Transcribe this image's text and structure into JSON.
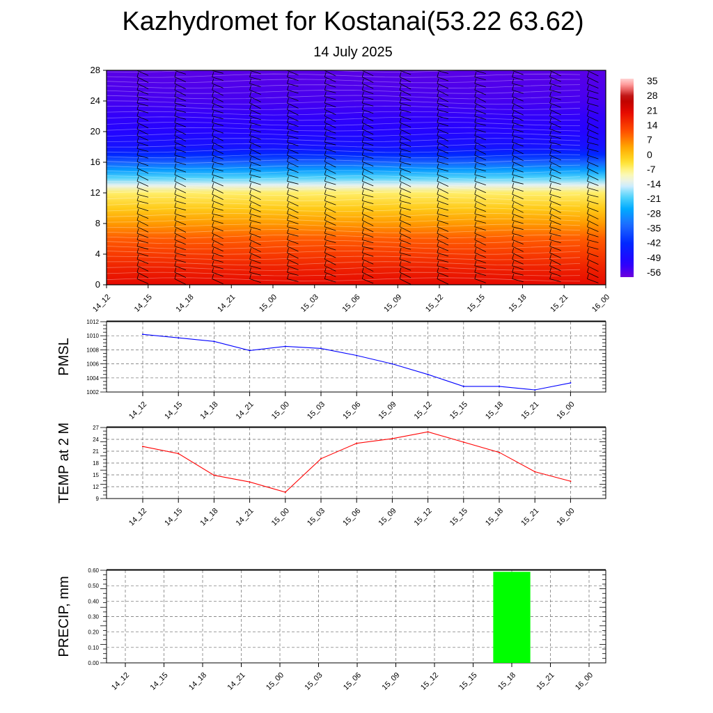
{
  "title": "Kazhydromet for Kostanai(53.22 63.62)",
  "subtitle": "14 July 2025",
  "time_labels": [
    "14_12",
    "14_15",
    "14_18",
    "14_21",
    "15_00",
    "15_03",
    "15_06",
    "15_09",
    "15_12",
    "15_15",
    "15_18",
    "15_21",
    "16_00"
  ],
  "colors": {
    "pmsl_line": "#0000ff",
    "temp_line": "#ff0000",
    "precip_bar": "#00ff00"
  },
  "chart_data": [
    {
      "type": "heatmap",
      "name": "cross-section",
      "x": [
        "14_12",
        "14_15",
        "14_18",
        "14_21",
        "15_00",
        "15_03",
        "15_06",
        "15_09",
        "15_12",
        "15_15",
        "15_18",
        "15_21",
        "16_00"
      ],
      "yticks": [
        "0",
        "4",
        "8",
        "12",
        "16",
        "20",
        "24",
        "28"
      ],
      "ylim": [
        0,
        28
      ],
      "colorbar_labels": [
        "35",
        "28",
        "21",
        "14",
        "7",
        "0",
        "-7",
        "-14",
        "-21",
        "-28",
        "-35",
        "-42",
        "-49",
        "-56"
      ],
      "colorbar_range": [
        -63,
        42
      ],
      "overlay": "wind barbs",
      "temperature_profile": [
        {
          "level": 0,
          "value": 24
        },
        {
          "level": 2,
          "value": 21
        },
        {
          "level": 4,
          "value": 17
        },
        {
          "level": 6,
          "value": 13
        },
        {
          "level": 8,
          "value": 7
        },
        {
          "level": 10,
          "value": 1
        },
        {
          "level": 12,
          "value": -5
        },
        {
          "level": 13,
          "value": -13
        },
        {
          "level": 14,
          "value": -21
        },
        {
          "level": 15,
          "value": -29
        },
        {
          "level": 16,
          "value": -37
        },
        {
          "level": 17,
          "value": -45
        },
        {
          "level": 18,
          "value": -51
        },
        {
          "level": 20,
          "value": -55
        },
        {
          "level": 22,
          "value": -57
        },
        {
          "level": 24,
          "value": -59
        },
        {
          "level": 26,
          "value": -60
        },
        {
          "level": 28,
          "value": -61
        }
      ]
    },
    {
      "type": "line",
      "name": "pmsl",
      "ylabel": "PMSL",
      "categories": [
        "14_12",
        "14_15",
        "14_18",
        "14_21",
        "15_00",
        "15_03",
        "15_06",
        "15_09",
        "15_12",
        "15_15",
        "15_18",
        "15_21",
        "16_00"
      ],
      "values": [
        1010.2,
        1009.7,
        1009.2,
        1007.9,
        1008.5,
        1008.2,
        1007.2,
        1006.0,
        1004.5,
        1002.8,
        1002.8,
        1002.3,
        1003.3
      ],
      "ylim": [
        1002,
        1012
      ],
      "yticks": [
        "1002",
        "1004",
        "1006",
        "1008",
        "1010",
        "1012"
      ],
      "grid": true
    },
    {
      "type": "line",
      "name": "temp",
      "ylabel": "TEMP at 2 M",
      "categories": [
        "14_12",
        "14_15",
        "14_18",
        "14_21",
        "15_00",
        "15_03",
        "15_06",
        "15_09",
        "15_12",
        "15_15",
        "15_18",
        "15_21",
        "16_00"
      ],
      "values": [
        22.2,
        20.4,
        14.9,
        13.2,
        10.6,
        19.1,
        23.0,
        24.2,
        25.9,
        23.3,
        20.7,
        15.8,
        13.4
      ],
      "ylim": [
        9,
        27
      ],
      "yticks": [
        "9",
        "12",
        "15",
        "18",
        "21",
        "24",
        "27"
      ],
      "grid": true
    },
    {
      "type": "bar",
      "name": "precip",
      "ylabel": "PRECIP, mm",
      "categories": [
        "14_12",
        "14_15",
        "14_18",
        "14_21",
        "15_00",
        "15_03",
        "15_06",
        "15_09",
        "15_12",
        "15_15",
        "15_18",
        "15_21",
        "16_00"
      ],
      "values": [
        0,
        0,
        0,
        0,
        0,
        0,
        0,
        0,
        0,
        0,
        0.59,
        0,
        0
      ],
      "ylim": [
        0,
        0.6
      ],
      "yticks": [
        "0.00",
        "0.10",
        "0.20",
        "0.30",
        "0.40",
        "0.50",
        "0.60"
      ],
      "grid": true
    }
  ]
}
